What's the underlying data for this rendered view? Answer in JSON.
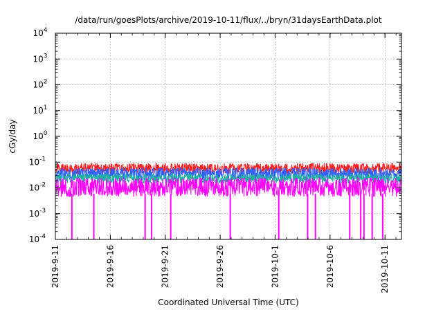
{
  "chart_data": {
    "type": "line",
    "title": "/data/run/goesPlots/archive/2019-10-11/flux/../bryn/31daysEarthData.plot",
    "xlabel": "Coordinated Universal Time (UTC)",
    "ylabel": "cGy/day",
    "yscale": "log",
    "ylim": [
      0.0001,
      10000
    ],
    "xlim": [
      "2019-09-11",
      "2019-10-12 12:00"
    ],
    "grid": true,
    "yticks": [
      {
        "value": 0.0001,
        "base": "10",
        "exp": "-4"
      },
      {
        "value": 0.001,
        "base": "10",
        "exp": "-3"
      },
      {
        "value": 0.01,
        "base": "10",
        "exp": "-2"
      },
      {
        "value": 0.1,
        "base": "10",
        "exp": "-1"
      },
      {
        "value": 1,
        "base": "10",
        "exp": "0"
      },
      {
        "value": 10,
        "base": "10",
        "exp": "1"
      },
      {
        "value": 100,
        "base": "10",
        "exp": "2"
      },
      {
        "value": 1000,
        "base": "10",
        "exp": "3"
      },
      {
        "value": 10000,
        "base": "10",
        "exp": "4"
      }
    ],
    "xticks": [
      "2019-9-11",
      "2019-9-16",
      "2019-9-21",
      "2019-9-26",
      "2019-10-1",
      "2019-10-6",
      "2019-10-11"
    ],
    "series": [
      {
        "color": "#ff2020",
        "band": [
          0.035,
          0.09
        ]
      },
      {
        "color": "#3060ff",
        "band": [
          0.02,
          0.06
        ]
      },
      {
        "color": "#20b0a0",
        "band": [
          0.015,
          0.035
        ]
      },
      {
        "color": "#ff00ff",
        "band": [
          0.0045,
          0.025
        ]
      }
    ],
    "dropouts": [
      "2019-09-12 12:00",
      "2019-09-14 12:00",
      "2019-09-19 04:00",
      "2019-09-19 18:00",
      "2019-09-21 12:00",
      "2019-09-26 22:00",
      "2019-10-01 08:00",
      "2019-10-03 23:00",
      "2019-10-04 16:00",
      "2019-10-07 19:00",
      "2019-10-08 19:00",
      "2019-10-09 02:00",
      "2019-10-09 20:00",
      "2019-10-10 19:00"
    ]
  }
}
